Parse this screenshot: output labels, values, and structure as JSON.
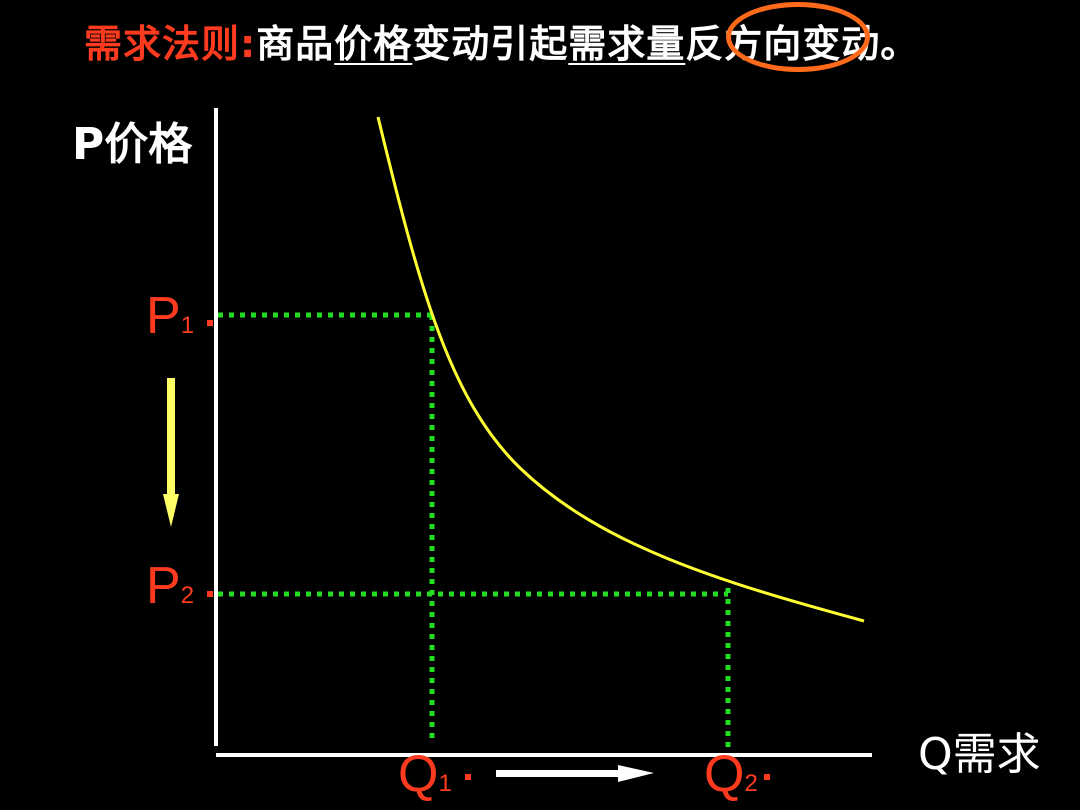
{
  "title": {
    "law": "需求法则",
    "colon": ":",
    "part1": "商品",
    "part2": "价格",
    "part3": "变动引起",
    "part4": "需求量",
    "part5": "反方向",
    "part6": "变动。"
  },
  "axes": {
    "y_label": "P价格",
    "x_label": "Q需求"
  },
  "ticks": {
    "p1_main": "P",
    "p1_sub": "1",
    "p2_main": "P",
    "p2_sub": "2",
    "q1_main": "Q",
    "q1_sub": "1",
    "q2_main": "Q",
    "q2_sub": "2"
  },
  "colors": {
    "background": "#000000",
    "curve": "#ffff33",
    "guides": "#22dd22",
    "labels": "#ff3b1f",
    "arrows": "#ffff66",
    "ring": "#ff6a1a"
  }
}
